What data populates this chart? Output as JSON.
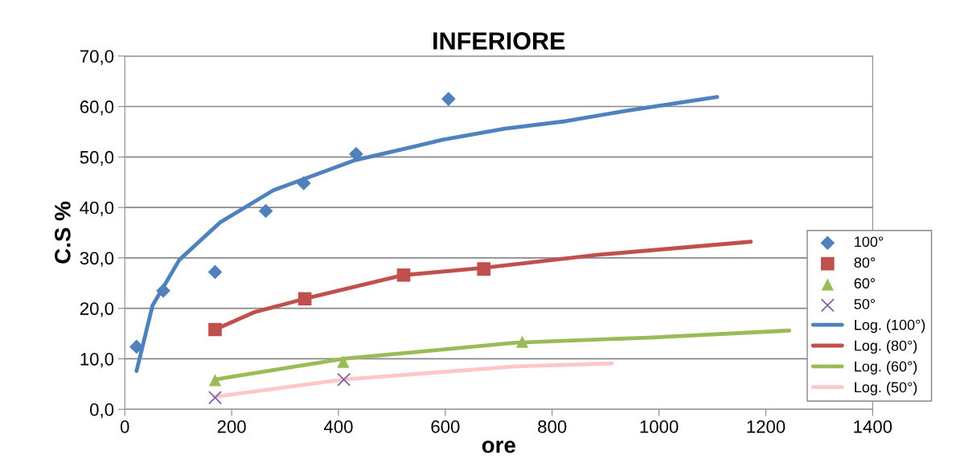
{
  "chart_data": {
    "type": "scatter",
    "title": "INFERIORE",
    "xlabel": "ore",
    "ylabel": "C.S %",
    "xlim": [
      0,
      1400
    ],
    "xticks": [
      0,
      200,
      400,
      600,
      800,
      1000,
      1200,
      1400
    ],
    "ylim": [
      0,
      70
    ],
    "yticks": [
      {
        "value": 0,
        "label": "0,0"
      },
      {
        "value": 10,
        "label": "10,0"
      },
      {
        "value": 20,
        "label": "20,0"
      },
      {
        "value": 30,
        "label": "30,0"
      },
      {
        "value": 40,
        "label": "40,0"
      },
      {
        "value": 50,
        "label": "50,0"
      },
      {
        "value": 60,
        "label": "60,0"
      },
      {
        "value": 70,
        "label": "70,0"
      }
    ],
    "grid": "y",
    "legend": "right",
    "series": [
      {
        "name": "100°",
        "marker": "diamond",
        "color": "#4f81bd",
        "x": [
          22,
          72,
          169,
          264,
          335,
          433,
          606
        ],
        "values": [
          12.4,
          23.5,
          27.2,
          39.3,
          44.8,
          50.6,
          61.5
        ]
      },
      {
        "name": "80°",
        "marker": "square",
        "color": "#c0504d",
        "x": [
          169,
          337,
          522,
          672
        ],
        "values": [
          15.8,
          21.9,
          26.6,
          27.8
        ]
      },
      {
        "name": "60°",
        "marker": "triangle",
        "color": "#9bbb59",
        "x": [
          169,
          409,
          744
        ],
        "values": [
          5.8,
          9.4,
          13.4
        ]
      },
      {
        "name": "50°",
        "marker": "cross",
        "color": "#8064a2",
        "x": [
          169,
          410
        ],
        "values": [
          2.3,
          5.9
        ]
      },
      {
        "name": "Log. (100°)",
        "type": "line",
        "marker": "none",
        "color": "#4f81bd",
        "x": [
          22,
          52,
          102,
          178,
          278,
          429,
          595,
          711,
          826,
          941,
          1109
        ],
        "values": [
          7.6,
          20.6,
          29.6,
          37.0,
          43.4,
          49.3,
          53.4,
          55.6,
          57.1,
          59.2,
          61.9
        ]
      },
      {
        "name": "Log. (80°)",
        "type": "line",
        "marker": "none",
        "color": "#c0504d",
        "x": [
          169,
          244,
          337,
          522,
          670,
          884,
          1172
        ],
        "values": [
          15.8,
          19.3,
          21.9,
          26.6,
          28.0,
          30.6,
          33.2
        ]
      },
      {
        "name": "Log. (60°)",
        "type": "line",
        "marker": "none",
        "color": "#9bbb59",
        "x": [
          169,
          409,
          731,
          980,
          1244
        ],
        "values": [
          5.9,
          10.0,
          13.2,
          14.2,
          15.6
        ]
      },
      {
        "name": "Log. (50°)",
        "type": "line",
        "marker": "none",
        "color": "#ffc7c7",
        "x": [
          169,
          410,
          731,
          912
        ],
        "values": [
          2.5,
          5.9,
          8.5,
          9.1
        ]
      }
    ]
  }
}
